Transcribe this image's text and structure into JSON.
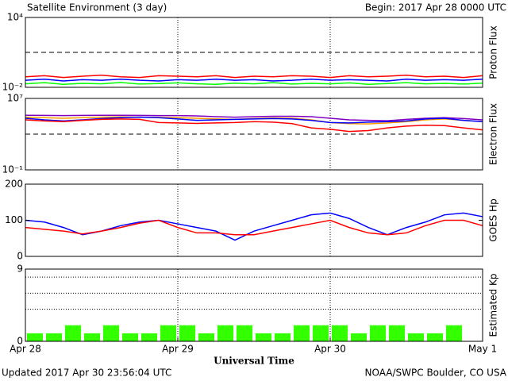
{
  "header": {
    "title": "Satellite Environment (3 day)",
    "begin": "Begin:  2017 Apr 28 0000 UTC"
  },
  "footer": {
    "updated": "Updated 2017 Apr 30 23:56:04 UTC",
    "credit": "NOAA/SWPC Boulder, CO USA"
  },
  "chart_data": [
    {
      "type": "line",
      "ylabel": "Proton Flux",
      "log": true,
      "xlim": [
        0,
        72
      ],
      "ylim": [
        0.01,
        10000
      ],
      "yticks": [
        {
          "value": 10000,
          "label": "10⁴"
        },
        {
          "value": 0.01,
          "label": "10⁻²"
        }
      ],
      "threshold": 10,
      "x": [
        0,
        3,
        6,
        9,
        12,
        15,
        18,
        21,
        24,
        27,
        30,
        33,
        36,
        39,
        42,
        45,
        48,
        51,
        54,
        57,
        60,
        63,
        66,
        69,
        72
      ],
      "series": [
        {
          "color": "#ff0000",
          "values": [
            0.08,
            0.1,
            0.07,
            0.09,
            0.11,
            0.08,
            0.07,
            0.1,
            0.09,
            0.08,
            0.1,
            0.07,
            0.09,
            0.08,
            0.1,
            0.09,
            0.07,
            0.1,
            0.08,
            0.09,
            0.11,
            0.08,
            0.09,
            0.07,
            0.1
          ]
        },
        {
          "color": "#0000ff",
          "values": [
            0.04,
            0.05,
            0.035,
            0.045,
            0.04,
            0.05,
            0.04,
            0.035,
            0.045,
            0.04,
            0.05,
            0.04,
            0.045,
            0.035,
            0.04,
            0.05,
            0.04,
            0.045,
            0.04,
            0.035,
            0.05,
            0.04,
            0.045,
            0.04,
            0.05
          ]
        },
        {
          "color": "#00ff00",
          "values": [
            0.02,
            0.025,
            0.018,
            0.022,
            0.02,
            0.026,
            0.019,
            0.021,
            0.024,
            0.02,
            0.018,
            0.023,
            0.02,
            0.025,
            0.019,
            0.022,
            0.02,
            0.024,
            0.018,
            0.021,
            0.025,
            0.02,
            0.022,
            0.019,
            0.023
          ]
        }
      ]
    },
    {
      "type": "line",
      "ylabel": "Electron Flux",
      "log": true,
      "xlim": [
        0,
        72
      ],
      "ylim": [
        0.1,
        10000000
      ],
      "yticks": [
        {
          "value": 10000000,
          "label": "10⁷"
        },
        {
          "value": 0.1,
          "label": "10⁻¹"
        }
      ],
      "threshold": 1000,
      "x": [
        0,
        3,
        6,
        9,
        12,
        15,
        18,
        21,
        24,
        27,
        30,
        33,
        36,
        39,
        42,
        45,
        48,
        51,
        54,
        57,
        60,
        63,
        66,
        69,
        72
      ],
      "series": [
        {
          "color": "#8000c0",
          "values": [
            130000,
            125000,
            120000,
            125000,
            130000,
            130000,
            125000,
            120000,
            120000,
            110000,
            90000,
            80000,
            90000,
            100000,
            100000,
            90000,
            60000,
            40000,
            35000,
            32000,
            45000,
            60000,
            70000,
            55000,
            40000
          ]
        },
        {
          "color": "#ff9900",
          "values": [
            80000,
            70000,
            60000,
            70000,
            80000,
            85000,
            80000,
            75000,
            70000,
            60000,
            50000,
            45000,
            55000,
            65000,
            60000,
            40000,
            20000,
            15000,
            14000,
            18000,
            25000,
            40000,
            50000,
            35000,
            25000
          ]
        },
        {
          "color": "#0000ff",
          "values": [
            60000,
            40000,
            30000,
            40000,
            55000,
            70000,
            80000,
            70000,
            50000,
            35000,
            40000,
            45000,
            50000,
            55000,
            50000,
            35000,
            20000,
            18000,
            22000,
            25000,
            30000,
            50000,
            60000,
            35000,
            25000
          ]
        },
        {
          "color": "#ff0000",
          "values": [
            40000,
            30000,
            25000,
            35000,
            45000,
            50000,
            45000,
            20000,
            18000,
            16000,
            18000,
            20000,
            25000,
            22000,
            15000,
            5000,
            3500,
            2000,
            2500,
            5000,
            8000,
            10000,
            9000,
            5000,
            3000
          ]
        }
      ]
    },
    {
      "type": "line",
      "ylabel": "GOES Hp",
      "log": false,
      "xlim": [
        0,
        72
      ],
      "ylim": [
        0,
        200
      ],
      "yticks": [
        0,
        100,
        200
      ],
      "x": [
        0,
        3,
        6,
        9,
        12,
        15,
        18,
        21,
        24,
        27,
        30,
        33,
        36,
        39,
        42,
        45,
        48,
        51,
        54,
        57,
        60,
        63,
        66,
        69,
        72
      ],
      "series": [
        {
          "color": "#0000ff",
          "values": [
            100,
            95,
            80,
            60,
            70,
            85,
            95,
            100,
            90,
            80,
            70,
            45,
            70,
            85,
            100,
            115,
            120,
            105,
            80,
            60,
            80,
            95,
            115,
            120,
            110
          ]
        },
        {
          "color": "#ff0000",
          "values": [
            80,
            75,
            70,
            62,
            70,
            80,
            92,
            100,
            80,
            65,
            65,
            60,
            60,
            70,
            80,
            90,
            100,
            80,
            65,
            60,
            65,
            85,
            100,
            100,
            85
          ]
        }
      ]
    },
    {
      "type": "histogram",
      "ylabel": "Estimated Kp",
      "log": false,
      "color": "#33ff00",
      "xlim": [
        0,
        72
      ],
      "ylim": [
        0,
        9
      ],
      "yticks": [
        0,
        9
      ],
      "levels": [
        4,
        6,
        8
      ],
      "xlabel": "Universal Time",
      "xticks": [
        {
          "value": 0,
          "label": "Apr 28"
        },
        {
          "value": 24,
          "label": "Apr 29"
        },
        {
          "value": 48,
          "label": "Apr 30"
        },
        {
          "value": 72,
          "label": "May 1"
        }
      ],
      "bins": [
        0,
        3,
        6,
        9,
        12,
        15,
        18,
        21,
        24,
        27,
        30,
        33,
        36,
        39,
        42,
        45,
        48,
        51,
        54,
        57,
        60,
        63,
        66,
        69,
        72
      ],
      "values": [
        1,
        1,
        2,
        1,
        2,
        1,
        1,
        2,
        2,
        1,
        2,
        2,
        1,
        1,
        2,
        2,
        2,
        1,
        2,
        2,
        1,
        1,
        2,
        0
      ]
    }
  ]
}
